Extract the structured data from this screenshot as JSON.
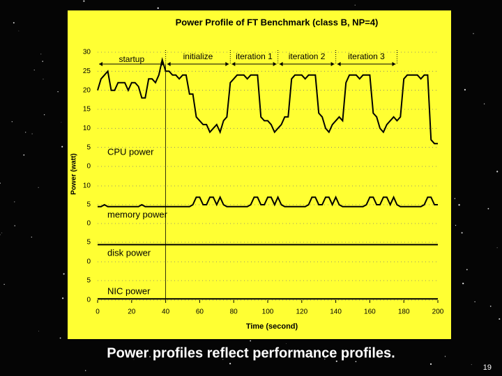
{
  "chart_data": [
    {
      "type": "line",
      "title": "Power Profile of FT Benchmark (class B, NP=4)",
      "ylabel": "Power (watt)",
      "label": "CPU power",
      "color": "#000000",
      "grid": true,
      "phases": [
        {
          "label": "startup",
          "start": 0,
          "end": 40
        },
        {
          "label": "initialize",
          "start": 40,
          "end": 78
        },
        {
          "label": "iteration 1",
          "start": 78,
          "end": 106
        },
        {
          "label": "iteration 2",
          "start": 106,
          "end": 140
        },
        {
          "label": "iteration 3",
          "start": 140,
          "end": 176
        }
      ],
      "xlim": [
        0,
        200
      ],
      "ylim": [
        0,
        30
      ],
      "yticks": [
        0,
        5,
        10,
        15,
        20,
        25,
        30
      ],
      "x": [
        0,
        2,
        4,
        6,
        8,
        10,
        12,
        14,
        16,
        18,
        20,
        22,
        24,
        26,
        28,
        30,
        32,
        34,
        36,
        38,
        40,
        42,
        44,
        46,
        48,
        50,
        52,
        54,
        56,
        58,
        60,
        62,
        64,
        66,
        68,
        70,
        72,
        74,
        76,
        78,
        80,
        82,
        84,
        86,
        88,
        90,
        92,
        94,
        96,
        98,
        100,
        102,
        104,
        106,
        108,
        110,
        112,
        114,
        116,
        118,
        120,
        122,
        124,
        126,
        128,
        130,
        132,
        134,
        136,
        138,
        140,
        142,
        144,
        146,
        148,
        150,
        152,
        154,
        156,
        158,
        160,
        162,
        164,
        166,
        168,
        170,
        172,
        174,
        176,
        178,
        180,
        182,
        184,
        186,
        188,
        190,
        192,
        194,
        196,
        198,
        200
      ],
      "values": [
        20,
        23,
        24,
        25,
        20,
        20,
        22,
        22,
        22,
        20,
        22,
        22,
        21,
        18,
        18,
        23,
        23,
        22,
        24,
        28,
        25,
        25,
        24,
        24,
        23,
        24,
        24,
        19,
        19,
        13,
        12,
        11,
        11,
        9,
        10,
        11,
        9,
        12,
        13,
        22,
        23,
        24,
        24,
        24,
        23,
        24,
        24,
        24,
        13,
        12,
        12,
        11,
        9,
        10,
        11,
        13,
        13,
        23,
        24,
        24,
        24,
        23,
        24,
        24,
        24,
        14,
        13,
        10,
        9,
        11,
        12,
        13,
        12,
        22,
        24,
        24,
        24,
        23,
        24,
        24,
        24,
        14,
        13,
        10,
        9,
        11,
        12,
        13,
        12,
        13,
        23,
        24,
        24,
        24,
        24,
        23,
        24,
        24,
        7,
        6,
        6
      ]
    },
    {
      "type": "line",
      "label": "memory power",
      "color": "#000000",
      "grid": true,
      "xlim": [
        0,
        200
      ],
      "ylim": [
        0,
        10
      ],
      "yticks": [
        0,
        5,
        10
      ],
      "x": [
        0,
        2,
        4,
        6,
        8,
        10,
        12,
        14,
        16,
        18,
        20,
        22,
        24,
        26,
        28,
        30,
        32,
        34,
        36,
        38,
        40,
        42,
        44,
        46,
        48,
        50,
        52,
        54,
        56,
        58,
        60,
        62,
        64,
        66,
        68,
        70,
        72,
        74,
        76,
        78,
        80,
        82,
        84,
        86,
        88,
        90,
        92,
        94,
        96,
        98,
        100,
        102,
        104,
        106,
        108,
        110,
        112,
        114,
        116,
        118,
        120,
        122,
        124,
        126,
        128,
        130,
        132,
        134,
        136,
        138,
        140,
        142,
        144,
        146,
        148,
        150,
        152,
        154,
        156,
        158,
        160,
        162,
        164,
        166,
        168,
        170,
        172,
        174,
        176,
        178,
        180,
        182,
        184,
        186,
        188,
        190,
        192,
        194,
        196,
        198,
        200
      ],
      "values": [
        4.5,
        4.5,
        5,
        4.5,
        4.5,
        4.5,
        4.5,
        4.5,
        4.5,
        4.5,
        4.5,
        4.5,
        4.5,
        5,
        4.5,
        4.5,
        4.5,
        4.5,
        4.5,
        4.5,
        4.5,
        4.5,
        4.5,
        4.5,
        4.5,
        4.5,
        4.5,
        4.5,
        5,
        7,
        7,
        5,
        5,
        7,
        7,
        5,
        7,
        5,
        4.5,
        4.5,
        4.5,
        4.5,
        4.5,
        4.5,
        4.5,
        5,
        7,
        7,
        5,
        5,
        7,
        7,
        5,
        7,
        5,
        4.5,
        4.5,
        4.5,
        4.5,
        4.5,
        4.5,
        4.5,
        5,
        7,
        7,
        5,
        5,
        7,
        7,
        5,
        7,
        5,
        4.5,
        4.5,
        4.5,
        4.5,
        4.5,
        4.5,
        4.5,
        5,
        7,
        7,
        5,
        5,
        7,
        7,
        5,
        7,
        5,
        4.5,
        4.5,
        4.5,
        4.5,
        4.5,
        4.5,
        4.5,
        5,
        7,
        7,
        5,
        5
      ]
    },
    {
      "type": "line",
      "label": "disk power",
      "color": "#000000",
      "grid": true,
      "xlim": [
        0,
        200
      ],
      "ylim": [
        0,
        5
      ],
      "yticks": [
        0,
        5
      ],
      "x": [
        0,
        200
      ],
      "values": [
        4.4,
        4.4
      ]
    },
    {
      "type": "line",
      "label": "NIC power",
      "color": "#000000",
      "grid": true,
      "xlim": [
        0,
        200
      ],
      "ylim": [
        0,
        5
      ],
      "yticks": [
        0,
        5
      ],
      "xlabel": "Time (second)",
      "xticks": [
        0,
        20,
        40,
        60,
        80,
        100,
        120,
        140,
        160,
        180,
        200
      ],
      "x": [
        0,
        200
      ],
      "values": [
        0.3,
        0.3
      ]
    }
  ],
  "caption": "Power profiles reflect performance profiles.",
  "page_number": "19"
}
